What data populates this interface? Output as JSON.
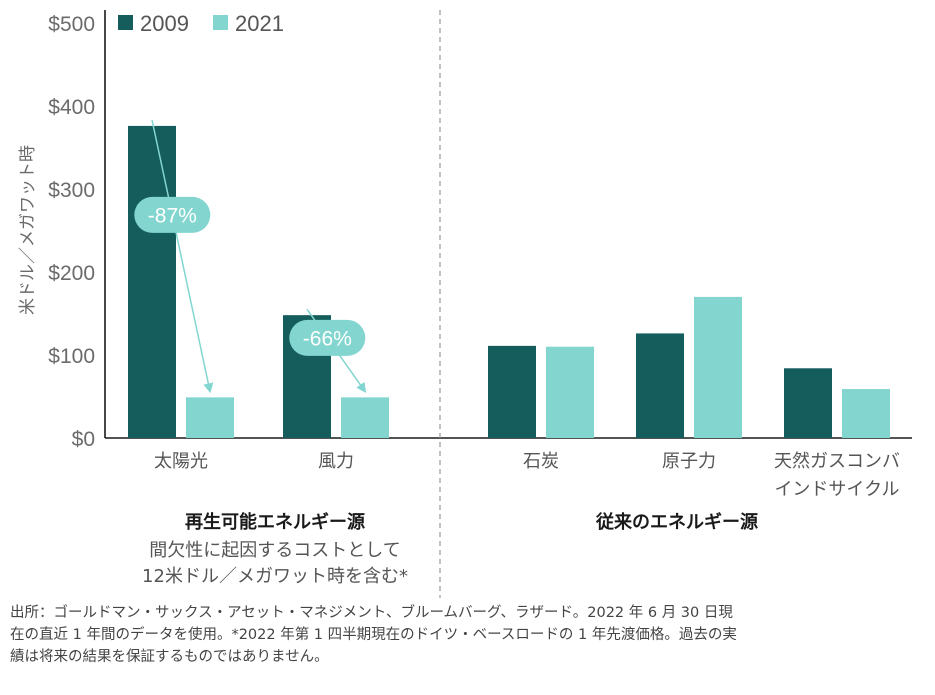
{
  "chart_data": {
    "type": "bar",
    "ylabel": "米ドル／メガワット時",
    "ylim": [
      0,
      500
    ],
    "yticks": [
      0,
      100,
      200,
      300,
      400,
      500
    ],
    "ytick_labels": [
      "$0",
      "$100",
      "$200",
      "$300",
      "$400",
      "$500"
    ],
    "categories": [
      [
        "太陽光"
      ],
      [
        "風力"
      ],
      [
        "石炭"
      ],
      [
        "原子力"
      ],
      [
        "天然ガスコンバ",
        "インドサイクル"
      ]
    ],
    "series": [
      {
        "name": "2009",
        "color": "#155c5c",
        "values": [
          376,
          148,
          111,
          126,
          84
        ]
      },
      {
        "name": "2021",
        "color": "#83d6d0",
        "values": [
          49,
          49,
          110,
          170,
          59
        ]
      }
    ],
    "legend_position": "top-left",
    "grid": false,
    "annotations": [
      {
        "category": "太陽光",
        "label": "-87%"
      },
      {
        "category": "風力",
        "label": "-66%"
      }
    ],
    "groups": [
      {
        "title": "再生可能エネルギー源",
        "note_lines": [
          "間欠性に起因するコストとして",
          "12米ドル／メガワット時を含む*"
        ]
      },
      {
        "title": "従来のエネルギー源",
        "note_lines": []
      }
    ]
  },
  "source_note": [
    "出所：ゴールドマン・サックス・アセット・マネジメント、ブルームバーグ、ラザード。2022 年 6 月 30 日現",
    "在の直近 1 年間のデータを使用。*2022 年第 1 四半期現在のドイツ・ベースロードの 1 年先渡価格。過去の実",
    "績は将来の結果を保証するものではありません。"
  ]
}
